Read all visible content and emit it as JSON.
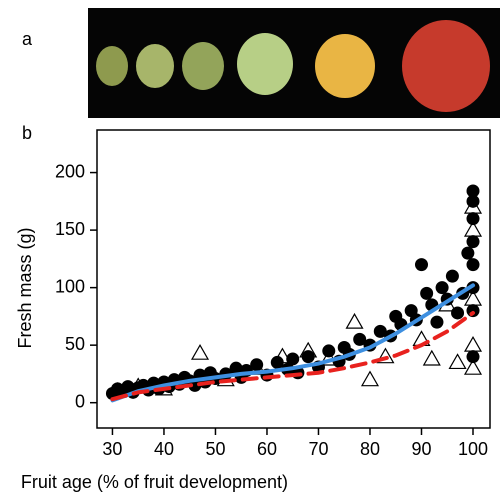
{
  "panel_labels": [
    "a",
    "b"
  ],
  "chart_data": {
    "type": "scatter",
    "xlabel": "Fruit age (% of fruit development)",
    "ylabel": "Fresh mass (g)",
    "xlim": [
      27,
      103.3
    ],
    "ylim": [
      -22,
      237
    ],
    "xticks": [
      30,
      40,
      50,
      60,
      70,
      80,
      90,
      100
    ],
    "yticks": [
      0,
      50,
      100,
      150,
      200
    ],
    "series": [
      {
        "marker": "circle",
        "color": "#000000",
        "x": [
          30,
          31,
          32,
          33,
          34,
          35,
          36,
          37,
          38,
          39,
          40,
          41,
          42,
          43,
          44,
          45,
          46,
          47,
          48,
          49,
          50,
          52,
          54,
          55,
          56,
          58,
          60,
          62,
          64,
          65,
          66,
          68,
          70,
          72,
          74,
          75,
          76,
          78,
          80,
          82,
          84,
          85,
          86,
          88,
          89,
          90,
          91,
          92,
          93,
          94,
          95,
          96,
          97,
          98,
          99,
          100,
          100,
          100,
          100,
          100,
          100,
          100,
          100
        ],
        "values": [
          8,
          12,
          10,
          14,
          9,
          13,
          15,
          11,
          17,
          12,
          18,
          14,
          20,
          16,
          22,
          19,
          15,
          24,
          18,
          26,
          21,
          25,
          30,
          22,
          28,
          33,
          24,
          35,
          29,
          38,
          26,
          40,
          31,
          45,
          36,
          48,
          42,
          55,
          50,
          62,
          58,
          75,
          68,
          80,
          72,
          120,
          95,
          85,
          70,
          100,
          90,
          110,
          78,
          95,
          130,
          184,
          175,
          160,
          140,
          120,
          100,
          80,
          40
        ]
      },
      {
        "marker": "triangle",
        "color": "#000000",
        "x": [
          31,
          35,
          40,
          47,
          52,
          58,
          63,
          68,
          72,
          77,
          80,
          83,
          90,
          92,
          95,
          97,
          100,
          100,
          100,
          100,
          100
        ],
        "values": [
          10,
          14,
          12,
          43,
          20,
          30,
          40,
          45,
          38,
          70,
          20,
          40,
          55,
          38,
          85,
          35,
          170,
          150,
          90,
          30,
          50
        ]
      },
      {
        "marker": "line",
        "color": "#3d8fe0",
        "dash": false,
        "x": [
          30,
          35,
          40,
          45,
          50,
          55,
          60,
          65,
          70,
          75,
          80,
          85,
          90,
          95,
          100
        ],
        "values": [
          2,
          10,
          15,
          19,
          22,
          25,
          27,
          30,
          34,
          40,
          48,
          60,
          74,
          88,
          102
        ]
      },
      {
        "marker": "line",
        "color": "#e8221e",
        "dash": true,
        "x": [
          30,
          35,
          40,
          45,
          50,
          55,
          60,
          65,
          70,
          75,
          80,
          85,
          90,
          95,
          100
        ],
        "values": [
          3,
          9,
          12,
          15,
          18,
          20,
          22,
          24,
          26,
          30,
          35,
          41,
          50,
          62,
          78
        ]
      }
    ]
  }
}
